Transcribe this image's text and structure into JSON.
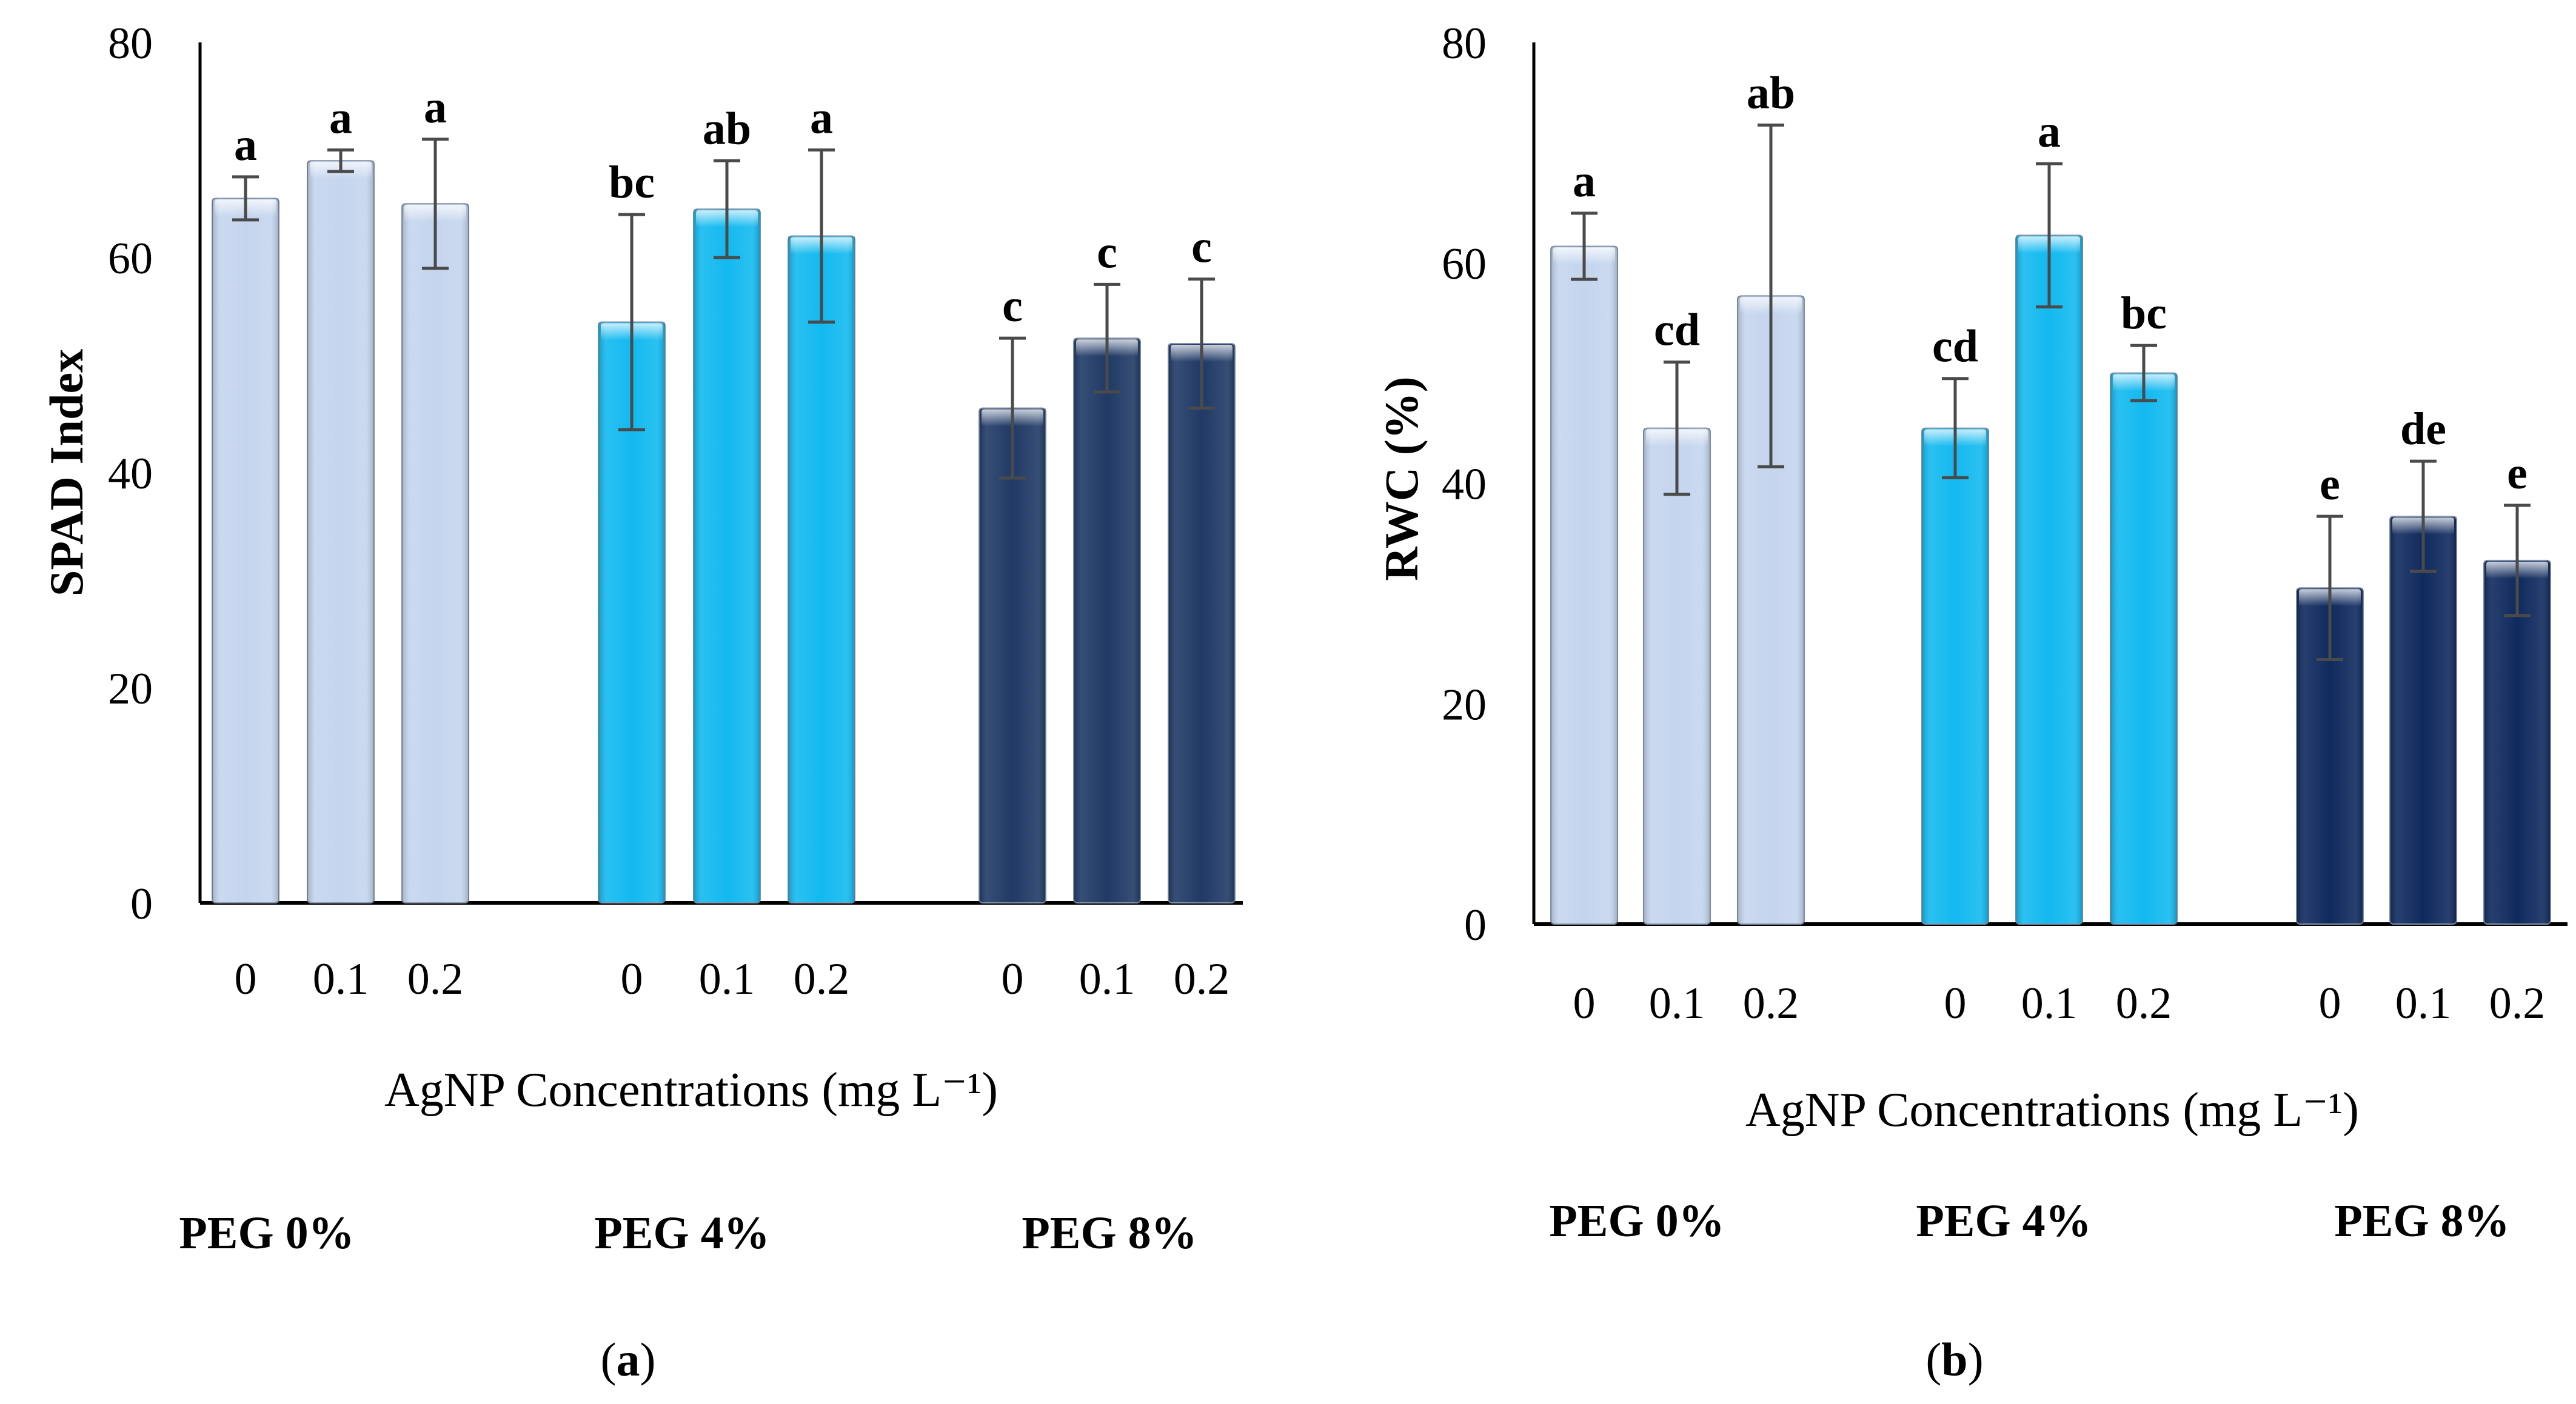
{
  "chart_data": [
    {
      "type": "bar",
      "panel_label": "a",
      "ylabel": "SPAD Index",
      "xlabel": "AgNP Concentrations (mg L⁻¹)",
      "ylim": [
        0,
        80
      ],
      "yticks": [
        "0",
        "20",
        "40",
        "60",
        "80"
      ],
      "groups": [
        {
          "label": "PEG 0%",
          "color": "#c5d5ee",
          "categories": [
            "0",
            "0.1",
            "0.2"
          ],
          "values": [
            65.5,
            69,
            65
          ],
          "errors": [
            2,
            1,
            6
          ],
          "letters": [
            "a",
            "a",
            "a"
          ]
        },
        {
          "label": "PEG 4%",
          "color": "#13b9f0",
          "categories": [
            "0",
            "0.1",
            "0.2"
          ],
          "values": [
            54,
            64.5,
            62
          ],
          "errors": [
            10,
            4.5,
            8
          ],
          "letters": [
            "bc",
            "ab",
            "a"
          ]
        },
        {
          "label": "PEG 8%",
          "color": "#203a66",
          "categories": [
            "0",
            "0.1",
            "0.2"
          ],
          "values": [
            46,
            52.5,
            52
          ],
          "errors": [
            6.5,
            5,
            6
          ],
          "letters": [
            "c",
            "c",
            "c"
          ]
        }
      ]
    },
    {
      "type": "bar",
      "panel_label": "b",
      "ylabel": "RWC (%)",
      "xlabel": "AgNP Concentrations (mg L⁻¹)",
      "ylim": [
        0,
        80
      ],
      "yticks": [
        "0",
        "20",
        "40",
        "60",
        "80"
      ],
      "groups": [
        {
          "label": "PEG 0%",
          "color": "#c5d5ee",
          "categories": [
            "0",
            "0.1",
            "0.2"
          ],
          "values": [
            61.5,
            45,
            57
          ],
          "errors": [
            3,
            6,
            15.5
          ],
          "letters": [
            "a",
            "cd",
            "ab"
          ]
        },
        {
          "label": "PEG 4%",
          "color": "#13b9f0",
          "categories": [
            "0",
            "0.1",
            "0.2"
          ],
          "values": [
            45,
            62.5,
            50
          ],
          "errors": [
            4.5,
            6.5,
            2.5
          ],
          "letters": [
            "cd",
            "a",
            "bc"
          ]
        },
        {
          "label": "PEG 8%",
          "color": "#102a5e",
          "categories": [
            "0",
            "0.1",
            "0.2"
          ],
          "values": [
            30.5,
            37,
            33
          ],
          "errors": [
            6.5,
            5,
            5
          ],
          "letters": [
            "e",
            "de",
            "e"
          ]
        }
      ]
    }
  ]
}
